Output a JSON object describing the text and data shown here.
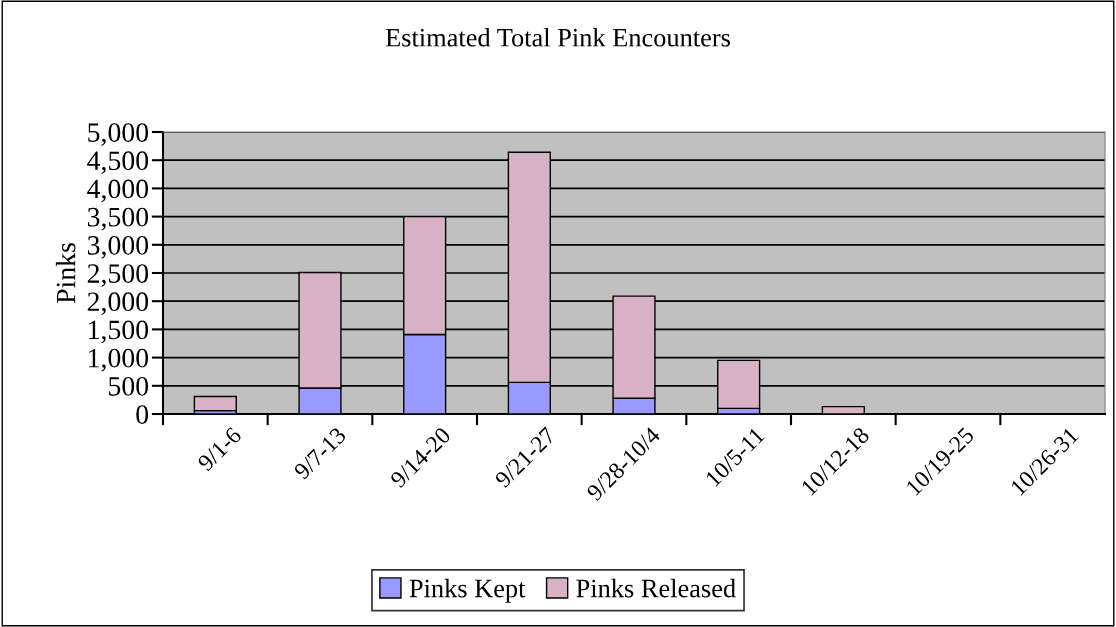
{
  "chart_data": {
    "type": "bar",
    "stacked": true,
    "title": "Estimated Total Pink Encounters",
    "ylabel": "Pinks",
    "categories": [
      "9/1-6",
      "9/7-13",
      "9/14-20",
      "9/21-27",
      "9/28-10/4",
      "10/5-11",
      "10/12-18",
      "10/19-25",
      "10/26-31"
    ],
    "series": [
      {
        "name": "Pinks Kept",
        "color": "#9999ff",
        "values": [
          60,
          460,
          1410,
          560,
          280,
          100,
          0,
          0,
          0
        ]
      },
      {
        "name": "Pinks Released",
        "color": "#d8b2c4",
        "values": [
          250,
          2050,
          2090,
          4080,
          1810,
          850,
          130,
          0,
          0
        ]
      }
    ],
    "ylim": [
      0,
      5000
    ],
    "yticks": [
      {
        "value": 0,
        "label": "0"
      },
      {
        "value": 500,
        "label": "500"
      },
      {
        "value": 1000,
        "label": "1,000"
      },
      {
        "value": 1500,
        "label": "1,500"
      },
      {
        "value": 2000,
        "label": "2,000"
      },
      {
        "value": 2500,
        "label": "2,500"
      },
      {
        "value": 3000,
        "label": "3,000"
      },
      {
        "value": 3500,
        "label": "3,500"
      },
      {
        "value": 4000,
        "label": "4,000"
      },
      {
        "value": 4500,
        "label": "4,500"
      },
      {
        "value": 5000,
        "label": "5,000"
      }
    ],
    "grid": "y",
    "legend": "bottom"
  }
}
